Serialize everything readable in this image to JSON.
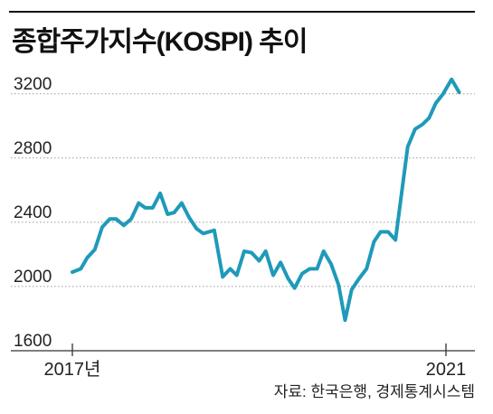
{
  "chart_data": {
    "type": "line",
    "title": "종합주가지수(KOSPI) 추이",
    "xlabel": "",
    "ylabel": "",
    "x_tick_values": [
      2017,
      2021
    ],
    "x_tick_labels": [
      "2017년",
      "2021"
    ],
    "y_ticks": [
      3200,
      2800,
      2400,
      2000,
      1600
    ],
    "ylim": [
      1600,
      3300
    ],
    "grid": true,
    "x": [
      2017.0,
      2017.09,
      2017.16,
      2017.24,
      2017.32,
      2017.4,
      2017.47,
      2017.55,
      2017.63,
      2017.71,
      2017.78,
      2017.86,
      2017.94,
      2018.02,
      2018.09,
      2018.17,
      2018.25,
      2018.33,
      2018.4,
      2018.52,
      2018.61,
      2018.69,
      2018.76,
      2018.84,
      2018.92,
      2019.0,
      2019.07,
      2019.15,
      2019.23,
      2019.31,
      2019.38,
      2019.46,
      2019.54,
      2019.62,
      2019.69,
      2019.77,
      2019.85,
      2019.92,
      2019.99,
      2020.07,
      2020.15,
      2020.23,
      2020.3,
      2020.38,
      2020.46,
      2020.59,
      2020.67,
      2020.75,
      2020.82,
      2020.89,
      2020.97,
      2021.06,
      2021.14
    ],
    "series": [
      {
        "values": [
          2090,
          2110,
          2180,
          2230,
          2370,
          2420,
          2420,
          2380,
          2420,
          2520,
          2490,
          2490,
          2580,
          2450,
          2460,
          2520,
          2430,
          2360,
          2330,
          2350,
          2060,
          2110,
          2070,
          2220,
          2210,
          2160,
          2220,
          2070,
          2150,
          2050,
          1990,
          2080,
          2110,
          2110,
          2220,
          2140,
          2010,
          1790,
          1980,
          2050,
          2110,
          2280,
          2340,
          2340,
          2290,
          2870,
          2980,
          3010,
          3050,
          3140,
          3200,
          3290,
          3210
        ]
      }
    ]
  },
  "source": "자료: 한국은행, 경제통계시스템",
  "colors": {
    "line": "#1f9ab9",
    "grid": "#9a9a9a",
    "axis": "#333333",
    "text": "#222222"
  }
}
